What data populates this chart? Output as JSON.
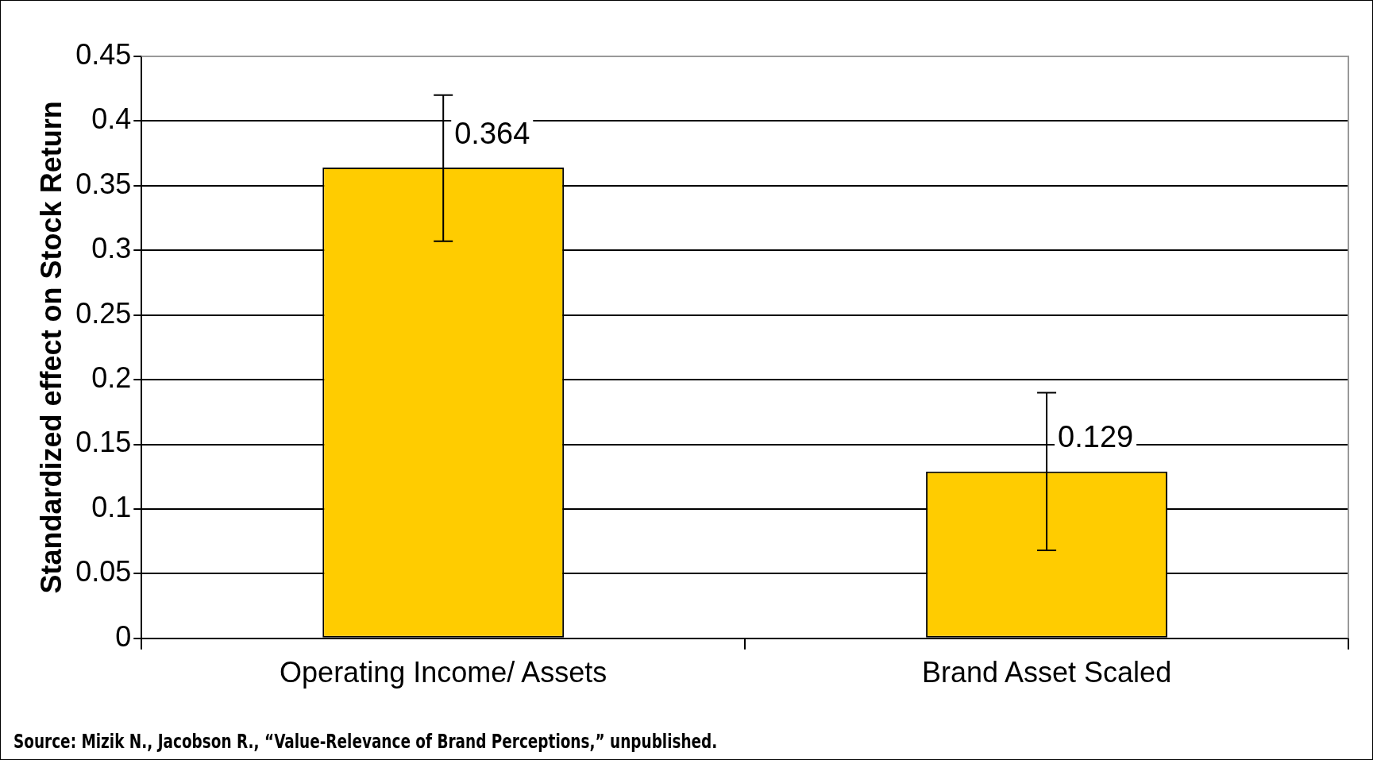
{
  "chart_data": {
    "type": "bar",
    "ylabel": "Standardized effect on Stock Return",
    "categories": [
      "Operating Income/ Assets",
      "Brand Asset Scaled"
    ],
    "values": [
      0.364,
      0.129
    ],
    "color": "#ffcc00",
    "errors": [
      [
        0.307,
        0.42
      ],
      [
        0.068,
        0.19
      ]
    ],
    "data_labels": true,
    "ylim": [
      0,
      0.45
    ],
    "yticks": [
      0,
      0.05,
      0.1,
      0.15,
      0.2,
      0.25,
      0.3,
      0.35,
      0.4,
      0.45
    ],
    "grid": "y",
    "legend": false,
    "annotations": [
      "Source: Mizik N., Jacobson R., “Value-Relevance of Brand Perceptions,” unpublished."
    ]
  }
}
